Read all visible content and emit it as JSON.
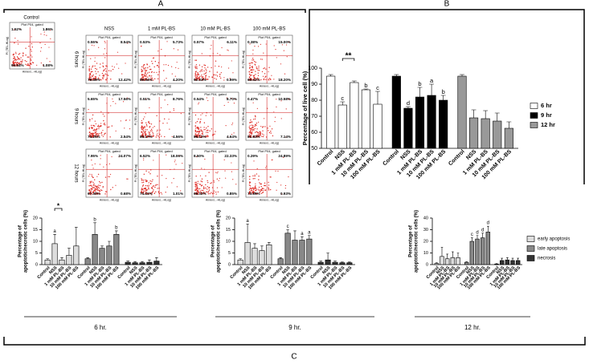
{
  "panel_labels": [
    "A",
    "B",
    "C"
  ],
  "flow_cytometry": {
    "plot_title": "Plot P04, gated",
    "y_axis": "PI (TEL-HLog)",
    "x_axis": "Annexi...-HLog)",
    "control": {
      "label": "Control",
      "quadrants": [
        "1.52%",
        "1.86%",
        "95.54%",
        "1.08%"
      ]
    },
    "columns": [
      "NSS",
      "1 mM PL-BS",
      "10 mM PL-BS",
      "100 mM PL-BS"
    ],
    "rows": [
      "6 hours",
      "9 hours",
      "12 hours"
    ],
    "plots": [
      [
        {
          "quadrants": [
            "0.55%",
            "8.54%",
            "78.49%",
            "12.42%"
          ]
        },
        {
          "quadrants": [
            "0.53%",
            "5.73%",
            "89.54%",
            "4.20%"
          ]
        },
        {
          "quadrants": [
            "0.57%",
            "6.11%",
            "92.33%",
            "0.99%"
          ]
        },
        {
          "quadrants": [
            "0.38%",
            "15.00%",
            "66.42%",
            "18.20%"
          ]
        }
      ],
      [
        {
          "quadrants": [
            "5.65%",
            "17.56%",
            "74.25%",
            "2.54%"
          ]
        },
        {
          "quadrants": [
            "0.51%",
            "8.76%",
            "86.17%",
            "4.56%"
          ]
        },
        {
          "quadrants": [
            "0.54%",
            "8.70%",
            "86.12%",
            "4.64%"
          ]
        },
        {
          "quadrants": [
            "0.47%",
            "10.58%",
            "81.83%",
            "7.14%"
          ]
        }
      ],
      [
        {
          "quadrants": [
            "7.95%",
            "24.07%",
            "67.30%",
            "0.68%"
          ]
        },
        {
          "quadrants": [
            "6.52%",
            "18.06%",
            "74.41%",
            "1.01%"
          ]
        },
        {
          "quadrants": [
            "8.50%",
            "22.33%",
            "68.32%",
            "0.85%"
          ]
        },
        {
          "quadrants": [
            "0.29%",
            "24.89%",
            "73.89%",
            "0.93%"
          ]
        }
      ]
    ]
  },
  "chart_data": [
    {
      "type": "bar",
      "y_label": [
        "Percentage of live cell (%)"
      ],
      "categories": [
        "Control",
        "NSS",
        "1 mM PL-BS",
        "10 mM PL-BS",
        "100 mM PL-BS"
      ],
      "ylim": [
        50,
        100
      ],
      "yticks": [
        50,
        60,
        70,
        80,
        90,
        100
      ],
      "legend": "right",
      "annotations": [
        {
          "text": "**"
        }
      ],
      "series": [
        {
          "name": "6 hr",
          "color": "#ffffff",
          "values": [
            95,
            77,
            91,
            86.5,
            77.5
          ],
          "errors": [
            1,
            2,
            1,
            0.5,
            8
          ],
          "letters": [
            null,
            "c",
            null,
            "b",
            "c"
          ]
        },
        {
          "name": "9 hr",
          "color": "#000000",
          "values": [
            95,
            75,
            82,
            83,
            80
          ],
          "errors": [
            1,
            1,
            6,
            7,
            3
          ],
          "letters": [
            null,
            "d",
            "b",
            "a",
            "b"
          ]
        },
        {
          "name": "12 hr",
          "color": "#999999",
          "values": [
            95,
            69,
            68.5,
            67,
            62.5
          ],
          "errors": [
            1,
            5,
            5,
            5,
            4
          ],
          "letters": [
            null,
            null,
            null,
            null,
            null
          ]
        }
      ]
    },
    {
      "type": "bar",
      "title": "6 hr.",
      "y_label": [
        "Percentage of",
        "apoptotic/necrotic cells (%)"
      ],
      "categories": [
        "Control",
        "NSS",
        "1 mM PL-BS",
        "10 mM PL-BS",
        "100 mM PL-BS"
      ],
      "ylim": [
        0,
        20
      ],
      "yticks": [
        0,
        5,
        10,
        15,
        20
      ],
      "annotations": [
        {
          "text": "*"
        }
      ],
      "series": [
        {
          "name": "early apoptosis",
          "color": "#dddddd",
          "values": [
            2,
            9,
            2,
            4,
            8
          ],
          "errors": [
            0.5,
            4,
            1,
            3,
            8
          ],
          "letters": [
            null,
            "a",
            null,
            null,
            null
          ]
        },
        {
          "name": "late apoptosis",
          "color": "#888888",
          "values": [
            2.5,
            13,
            7,
            8,
            13
          ],
          "errors": [
            0.5,
            5,
            1,
            2,
            1.5
          ],
          "letters": [
            null,
            "b",
            null,
            null,
            "b"
          ]
        },
        {
          "name": "necrosis",
          "color": "#333333",
          "values": [
            1,
            0.8,
            0.8,
            1,
            1.5
          ],
          "errors": [
            0.5,
            0.5,
            0.5,
            1,
            1.5
          ],
          "letters": [
            null,
            null,
            null,
            null,
            null
          ]
        }
      ]
    },
    {
      "type": "bar",
      "title": "9 hr.",
      "y_label": [
        "Percentage of",
        "apoptotic/necrotic cells (%)"
      ],
      "categories": [
        "Control",
        "NSS",
        "1 mM PL-BS",
        "10 mM PL-BS",
        "100 mM PL-BS"
      ],
      "ylim": [
        0,
        20
      ],
      "yticks": [
        0,
        5,
        10,
        15,
        20
      ],
      "series": [
        {
          "name": "early apoptosis",
          "color": "#dddddd",
          "values": [
            2,
            9.5,
            7,
            6,
            8.5
          ],
          "errors": [
            0.5,
            8,
            2,
            2,
            1
          ],
          "letters": [
            null,
            "a",
            null,
            null,
            null
          ]
        },
        {
          "name": "late apoptosis",
          "color": "#888888",
          "values": [
            2.5,
            13.5,
            10.5,
            10.5,
            11
          ],
          "errors": [
            0.5,
            1.5,
            4,
            1.5,
            1.5
          ],
          "letters": [
            null,
            "c",
            null,
            "a",
            "a"
          ]
        },
        {
          "name": "necrosis",
          "color": "#333333",
          "values": [
            1,
            2,
            1,
            0.8,
            0.8
          ],
          "errors": [
            0.5,
            3,
            0.5,
            0.3,
            0.3
          ],
          "letters": [
            null,
            null,
            null,
            null,
            null
          ]
        }
      ]
    },
    {
      "type": "bar",
      "title": "12 hr.",
      "y_label": [
        "Percentage of",
        "apoptotic/necrotic cells (%)"
      ],
      "categories": [
        "Control",
        "NSS",
        "1 mM PL-BS",
        "10 mM PL-BS",
        "100 mM PL-BS"
      ],
      "ylim": [
        0,
        40
      ],
      "yticks": [
        0,
        10,
        20,
        30,
        40
      ],
      "legend": "right",
      "series": [
        {
          "name": "early apoptosis",
          "color": "#dddddd",
          "values": [
            1,
            7,
            5,
            6,
            6
          ],
          "errors": [
            0.5,
            8,
            4,
            5,
            4
          ],
          "letters": [
            null,
            null,
            null,
            null,
            null
          ]
        },
        {
          "name": "late apoptosis",
          "color": "#888888",
          "values": [
            2,
            20,
            22,
            23,
            28
          ],
          "errors": [
            0.5,
            3,
            3,
            4,
            5
          ],
          "letters": [
            null,
            "c",
            "d",
            "d",
            "d"
          ]
        },
        {
          "name": "necrosis",
          "color": "#333333",
          "values": [
            0.5,
            3.5,
            4,
            3.5,
            3.5
          ],
          "errors": [
            0.3,
            2,
            2,
            2,
            2
          ],
          "letters": [
            null,
            null,
            null,
            null,
            null
          ]
        }
      ]
    }
  ]
}
